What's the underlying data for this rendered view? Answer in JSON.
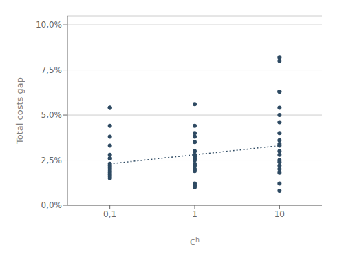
{
  "chart_data": {
    "type": "scatter",
    "x_label": "cʰ",
    "y_label": "Total costs gap",
    "categories": [
      "0,1",
      "1",
      "10"
    ],
    "series": [
      {
        "type": "scatter",
        "color": "#2E4A62",
        "values": [
          [
            0.054,
            0.054,
            0.044,
            0.038,
            0.033,
            0.028,
            0.026,
            0.026,
            0.023,
            0.022,
            0.021,
            0.02,
            0.019,
            0.018,
            0.017,
            0.016,
            0.015
          ],
          [
            0.056,
            0.044,
            0.04,
            0.038,
            0.035,
            0.03,
            0.028,
            0.027,
            0.026,
            0.025,
            0.023,
            0.022,
            0.02,
            0.019,
            0.012,
            0.011,
            0.01
          ],
          [
            0.082,
            0.08,
            0.063,
            0.063,
            0.054,
            0.05,
            0.046,
            0.04,
            0.036,
            0.034,
            0.033,
            0.03,
            0.028,
            0.025,
            0.024,
            0.022,
            0.02,
            0.018,
            0.012,
            0.008
          ]
        ]
      },
      {
        "type": "line",
        "line_style": "dotted",
        "color": "#2E4A62",
        "x": [
          "0,1",
          "10"
        ],
        "values": [
          0.023,
          0.033
        ]
      }
    ],
    "ylim": [
      0.0,
      0.105
    ],
    "yticks": [
      {
        "value": 0.0,
        "label": "0,0%"
      },
      {
        "value": 0.025,
        "label": "2,5%"
      },
      {
        "value": 0.05,
        "label": "5,0%"
      },
      {
        "value": 0.075,
        "label": "7,5%"
      },
      {
        "value": 0.1,
        "label": "10,0%"
      }
    ],
    "grid": "y"
  }
}
